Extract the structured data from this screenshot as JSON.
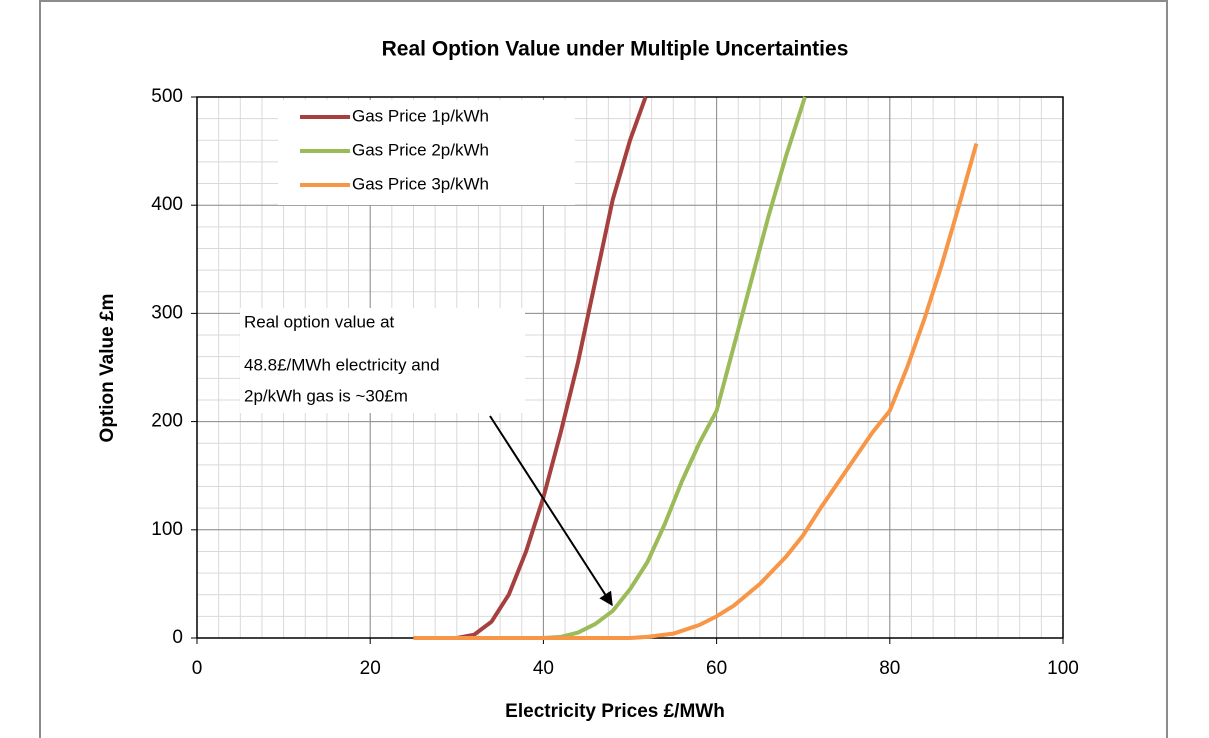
{
  "chart_data": {
    "type": "line",
    "title": "Real Option Value under Multiple Uncertainties",
    "x_label": "Electricity Prices £/MWh",
    "y_label": "Option Value £m",
    "xlim": [
      0,
      100
    ],
    "xticks": [
      0,
      20,
      40,
      60,
      80,
      100
    ],
    "ylim": [
      0,
      500
    ],
    "yticks": [
      0,
      100,
      200,
      300,
      400,
      500
    ],
    "grid": true,
    "minor_grid": {
      "x": 2.5,
      "y": 20
    },
    "legend": "upper left",
    "annotation": [
      "Real option value at",
      "48.8£/MWh electricity and",
      "2p/kWh gas is ~30£m"
    ],
    "series": [
      {
        "name": "Gas Price 1p/kWh",
        "color": "#a5403e",
        "x": [
          25,
          28,
          30,
          32,
          34,
          36,
          38,
          40,
          42,
          44,
          46,
          48,
          50,
          51.8
        ],
        "values": [
          0,
          0,
          0,
          3,
          15,
          40,
          80,
          130,
          190,
          255,
          330,
          405,
          460,
          500
        ]
      },
      {
        "name": "Gas Price 2p/kWh",
        "color": "#9bbb59",
        "x": [
          25,
          35,
          40,
          42,
          44,
          46,
          48,
          50,
          52,
          54,
          56,
          58,
          60,
          62,
          64,
          66,
          68,
          70.2
        ],
        "values": [
          0,
          0,
          0,
          1,
          5,
          13,
          25,
          45,
          70,
          105,
          145,
          180,
          210,
          270,
          330,
          390,
          445,
          500
        ]
      },
      {
        "name": "Gas Price 3p/kWh",
        "color": "#f79646",
        "x": [
          25,
          40,
          50,
          52,
          55,
          58,
          60,
          62,
          65,
          68,
          70,
          72,
          75,
          78,
          80,
          82,
          84,
          86,
          88,
          90
        ],
        "values": [
          0,
          0,
          0,
          1,
          4,
          12,
          20,
          30,
          50,
          75,
          95,
          120,
          155,
          190,
          210,
          250,
          295,
          345,
          400,
          457
        ]
      }
    ]
  }
}
